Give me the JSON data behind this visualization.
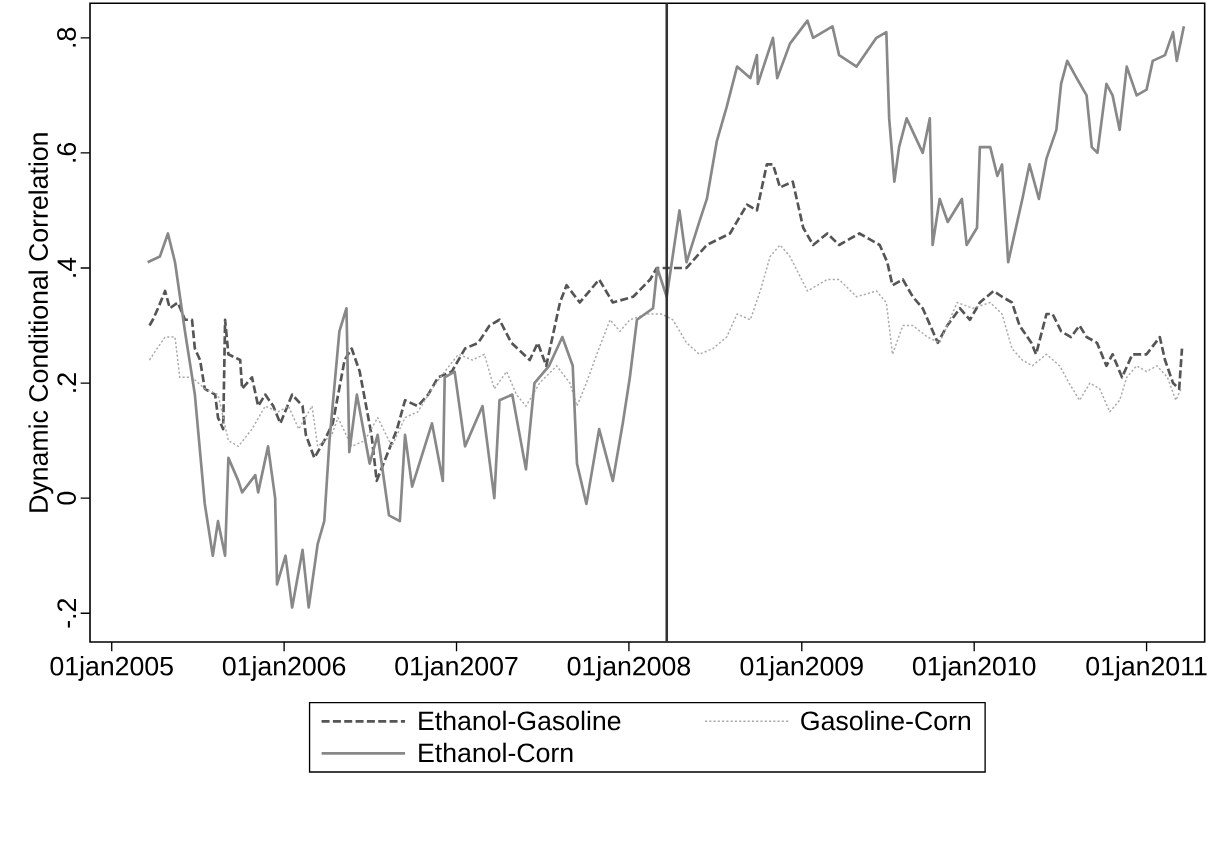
{
  "chart_data": {
    "type": "line",
    "ylabel": "Dynamic Conditional Correlation",
    "xlim": [
      "2004-11-16",
      "2011-05-04"
    ],
    "ylim": [
      -0.25,
      0.86
    ],
    "xticks": [
      {
        "value": "2005-01-01",
        "label": "01jan2005"
      },
      {
        "value": "2006-01-01",
        "label": "01jan2006"
      },
      {
        "value": "2007-01-01",
        "label": "01jan2007"
      },
      {
        "value": "2008-01-01",
        "label": "01jan2008"
      },
      {
        "value": "2009-01-01",
        "label": "01jan2009"
      },
      {
        "value": "2010-01-01",
        "label": "01jan2010"
      },
      {
        "value": "2011-01-01",
        "label": "01jan2011"
      }
    ],
    "yticks": [
      {
        "value": -0.2,
        "label": "-.2"
      },
      0,
      {
        "value": 0.2,
        "label": ".2"
      },
      {
        "value": 0.4,
        "label": ".4"
      },
      {
        "value": 0.6,
        "label": ".6"
      },
      {
        "value": 0.8,
        "label": ".8"
      }
    ],
    "legend": "bottom",
    "grid": false,
    "marker": "none",
    "ref_lines": [
      {
        "axis": "x",
        "value": "2008-03-21",
        "color": "#333333",
        "line_style": "solid"
      }
    ],
    "series": [
      {
        "name": "Ethanol-Gasoline",
        "color": "#555555",
        "line_style": "dashed",
        "x": [
          "2005-03-22",
          "2005-03-29",
          "2005-04-09",
          "2005-04-24",
          "2005-05-04",
          "2005-05-21",
          "2005-06-05",
          "2005-06-20",
          "2005-06-26",
          "2005-07-07",
          "2005-07-17",
          "2005-08-08",
          "2005-08-14",
          "2005-08-25",
          "2005-08-29",
          "2005-09-05",
          "2005-09-30",
          "2005-10-04",
          "2005-10-25",
          "2005-11-07",
          "2005-11-22",
          "2005-12-09",
          "2005-12-24",
          "2006-01-18",
          "2006-02-09",
          "2006-02-16",
          "2006-03-06",
          "2006-03-27",
          "2006-04-14",
          "2006-05-09",
          "2006-05-24",
          "2006-06-10",
          "2006-07-05",
          "2006-07-16",
          "2006-08-09",
          "2006-08-28",
          "2006-09-14",
          "2006-10-11",
          "2006-11-02",
          "2006-11-23",
          "2006-12-22",
          "2007-01-19",
          "2007-02-16",
          "2007-03-12",
          "2007-04-02",
          "2007-04-27",
          "2007-06-05",
          "2007-06-22",
          "2007-07-10",
          "2007-08-08",
          "2007-08-22",
          "2007-09-19",
          "2007-10-30",
          "2007-11-28",
          "2008-01-10",
          "2008-02-15",
          "2008-02-29",
          "2008-03-21",
          "2008-05-02",
          "2008-06-14",
          "2008-08-02",
          "2008-09-07",
          "2008-09-28",
          "2008-10-19",
          "2008-11-01",
          "2008-11-16",
          "2008-12-13",
          "2009-01-04",
          "2009-01-25",
          "2009-02-24",
          "2009-03-21",
          "2009-05-03",
          "2009-06-15",
          "2009-07-01",
          "2009-07-12",
          "2009-08-03",
          "2009-08-24",
          "2009-09-14",
          "2009-10-16",
          "2009-11-05",
          "2009-12-02",
          "2009-12-23",
          "2010-01-13",
          "2010-02-11",
          "2010-03-01",
          "2010-03-22",
          "2010-04-07",
          "2010-05-02",
          "2010-05-12",
          "2010-06-03",
          "2010-06-16",
          "2010-07-04",
          "2010-07-25",
          "2010-08-12",
          "2010-08-27",
          "2010-09-18",
          "2010-10-08",
          "2010-10-21",
          "2010-11-10",
          "2010-12-02",
          "2011-01-01",
          "2011-01-29",
          "2011-02-09",
          "2011-02-26",
          "2011-03-11",
          "2011-03-17"
        ],
        "values": [
          0.3,
          0.31,
          0.33,
          0.36,
          0.33,
          0.34,
          0.31,
          0.31,
          0.26,
          0.24,
          0.19,
          0.18,
          0.14,
          0.12,
          0.31,
          0.25,
          0.24,
          0.19,
          0.21,
          0.16,
          0.18,
          0.16,
          0.13,
          0.18,
          0.16,
          0.11,
          0.07,
          0.1,
          0.13,
          0.24,
          0.26,
          0.22,
          0.11,
          0.03,
          0.08,
          0.12,
          0.17,
          0.16,
          0.18,
          0.21,
          0.22,
          0.26,
          0.27,
          0.3,
          0.31,
          0.27,
          0.24,
          0.27,
          0.23,
          0.34,
          0.37,
          0.34,
          0.38,
          0.34,
          0.35,
          0.38,
          0.4,
          0.4,
          0.4,
          0.44,
          0.46,
          0.51,
          0.5,
          0.58,
          0.58,
          0.54,
          0.55,
          0.47,
          0.44,
          0.46,
          0.44,
          0.46,
          0.44,
          0.41,
          0.37,
          0.38,
          0.35,
          0.33,
          0.27,
          0.3,
          0.33,
          0.31,
          0.34,
          0.36,
          0.35,
          0.34,
          0.3,
          0.27,
          0.25,
          0.32,
          0.32,
          0.29,
          0.28,
          0.3,
          0.28,
          0.27,
          0.23,
          0.25,
          0.21,
          0.25,
          0.25,
          0.28,
          0.24,
          0.2,
          0.19,
          0.26
        ]
      },
      {
        "name": "Gasoline-Corn",
        "color": "#aaaaaa",
        "line_style": "dotted",
        "x": [
          "2005-03-22",
          "2005-04-07",
          "2005-04-24",
          "2005-05-15",
          "2005-05-25",
          "2005-06-20",
          "2005-07-17",
          "2005-08-14",
          "2005-09-05",
          "2005-09-26",
          "2005-10-25",
          "2005-11-22",
          "2005-12-19",
          "2006-01-10",
          "2006-02-01",
          "2006-03-01",
          "2006-03-13",
          "2006-04-12",
          "2006-04-25",
          "2006-05-24",
          "2006-06-21",
          "2006-07-18",
          "2006-08-17",
          "2006-09-14",
          "2006-10-11",
          "2006-11-10",
          "2006-12-07",
          "2007-01-05",
          "2007-02-04",
          "2007-03-01",
          "2007-03-22",
          "2007-04-17",
          "2007-05-08",
          "2007-05-28",
          "2007-06-26",
          "2007-08-01",
          "2007-08-29",
          "2007-09-13",
          "2007-10-03",
          "2007-10-25",
          "2007-11-22",
          "2007-12-13",
          "2008-01-03",
          "2008-02-09",
          "2008-03-10",
          "2008-04-03",
          "2008-05-02",
          "2008-05-29",
          "2008-06-27",
          "2008-07-26",
          "2008-08-17",
          "2008-09-14",
          "2008-10-05",
          "2008-10-26",
          "2008-11-16",
          "2008-12-07",
          "2009-01-13",
          "2009-02-24",
          "2009-03-21",
          "2009-04-27",
          "2009-06-08",
          "2009-06-29",
          "2009-07-12",
          "2009-08-03",
          "2009-08-24",
          "2009-09-24",
          "2009-10-20",
          "2009-11-26",
          "2009-12-29",
          "2010-02-04",
          "2010-03-01",
          "2010-03-22",
          "2010-04-13",
          "2010-05-04",
          "2010-06-03",
          "2010-07-01",
          "2010-07-21",
          "2010-08-12",
          "2010-09-03",
          "2010-09-24",
          "2010-10-15",
          "2010-11-05",
          "2010-11-20",
          "2010-12-11",
          "2011-01-01",
          "2011-01-23",
          "2011-02-14",
          "2011-03-04",
          "2011-03-15"
        ],
        "values": [
          0.24,
          0.26,
          0.28,
          0.28,
          0.21,
          0.21,
          0.19,
          0.18,
          0.1,
          0.09,
          0.12,
          0.16,
          0.15,
          0.16,
          0.12,
          0.16,
          0.09,
          0.11,
          0.14,
          0.09,
          0.1,
          0.14,
          0.09,
          0.14,
          0.15,
          0.19,
          0.22,
          0.25,
          0.24,
          0.25,
          0.19,
          0.22,
          0.18,
          0.16,
          0.2,
          0.23,
          0.2,
          0.16,
          0.2,
          0.25,
          0.31,
          0.29,
          0.31,
          0.32,
          0.32,
          0.31,
          0.27,
          0.25,
          0.26,
          0.28,
          0.32,
          0.31,
          0.36,
          0.42,
          0.44,
          0.42,
          0.36,
          0.38,
          0.38,
          0.35,
          0.36,
          0.34,
          0.25,
          0.3,
          0.3,
          0.28,
          0.27,
          0.34,
          0.33,
          0.34,
          0.32,
          0.26,
          0.24,
          0.23,
          0.25,
          0.23,
          0.2,
          0.17,
          0.2,
          0.19,
          0.15,
          0.17,
          0.21,
          0.23,
          0.22,
          0.23,
          0.21,
          0.17,
          0.19
        ]
      },
      {
        "name": "Ethanol-Corn",
        "color": "#888888",
        "line_style": "solid",
        "x": [
          "2005-03-18",
          "2005-04-13",
          "2005-04-30",
          "2005-05-15",
          "2005-06-05",
          "2005-06-26",
          "2005-07-17",
          "2005-08-03",
          "2005-08-14",
          "2005-08-29",
          "2005-09-05",
          "2005-09-26",
          "2005-10-04",
          "2005-11-01",
          "2005-11-07",
          "2005-11-28",
          "2005-12-13",
          "2005-12-17",
          "2006-01-04",
          "2006-01-18",
          "2006-02-09",
          "2006-02-22",
          "2006-03-13",
          "2006-03-27",
          "2006-04-07",
          "2006-04-28",
          "2006-05-13",
          "2006-05-19",
          "2006-06-04",
          "2006-07-01",
          "2006-07-18",
          "2006-08-11",
          "2006-09-03",
          "2006-09-14",
          "2006-09-29",
          "2006-11-10",
          "2006-12-03",
          "2006-12-07",
          "2006-12-28",
          "2007-01-19",
          "2007-02-25",
          "2007-03-22",
          "2007-04-02",
          "2007-04-29",
          "2007-05-28",
          "2007-06-15",
          "2007-07-16",
          "2007-08-13",
          "2007-09-04",
          "2007-09-13",
          "2007-10-03",
          "2007-10-30",
          "2007-11-28",
          "2007-12-19",
          "2008-01-03",
          "2008-01-18",
          "2008-02-21",
          "2008-03-01",
          "2008-03-21",
          "2008-04-17",
          "2008-05-02",
          "2008-05-29",
          "2008-06-14",
          "2008-07-05",
          "2008-07-26",
          "2008-08-17",
          "2008-09-14",
          "2008-09-28",
          "2008-09-30",
          "2008-11-01",
          "2008-11-10",
          "2008-12-07",
          "2009-01-13",
          "2009-01-25",
          "2009-03-07",
          "2009-03-21",
          "2009-04-27",
          "2009-06-08",
          "2009-06-29",
          "2009-07-05",
          "2009-07-16",
          "2009-07-26",
          "2009-08-11",
          "2009-09-14",
          "2009-09-29",
          "2009-10-05",
          "2009-10-20",
          "2009-11-06",
          "2009-12-06",
          "2009-12-16",
          "2010-01-07",
          "2010-01-13",
          "2010-02-04",
          "2010-02-19",
          "2010-03-01",
          "2010-03-14",
          "2010-04-13",
          "2010-04-28",
          "2010-05-18",
          "2010-06-03",
          "2010-06-24",
          "2010-07-04",
          "2010-07-17",
          "2010-08-06",
          "2010-08-27",
          "2010-09-07",
          "2010-09-19",
          "2010-10-08",
          "2010-10-21",
          "2010-11-05",
          "2010-11-20",
          "2010-12-11",
          "2011-01-01",
          "2011-01-14",
          "2011-02-09",
          "2011-02-26",
          "2011-03-06",
          "2011-03-21"
        ],
        "values": [
          0.41,
          0.42,
          0.46,
          0.41,
          0.29,
          0.18,
          -0.01,
          -0.1,
          -0.04,
          -0.1,
          0.07,
          0.03,
          0.01,
          0.04,
          0.01,
          0.09,
          0.0,
          -0.15,
          -0.1,
          -0.19,
          -0.09,
          -0.19,
          -0.08,
          -0.04,
          0.1,
          0.29,
          0.33,
          0.08,
          0.18,
          0.06,
          0.11,
          -0.03,
          -0.04,
          0.11,
          0.02,
          0.13,
          0.03,
          0.21,
          0.22,
          0.09,
          0.16,
          0.0,
          0.17,
          0.18,
          0.05,
          0.2,
          0.23,
          0.28,
          0.23,
          0.06,
          -0.01,
          0.12,
          0.03,
          0.13,
          0.21,
          0.31,
          0.33,
          0.4,
          0.35,
          0.5,
          0.41,
          0.48,
          0.52,
          0.62,
          0.68,
          0.75,
          0.73,
          0.77,
          0.72,
          0.8,
          0.73,
          0.79,
          0.83,
          0.8,
          0.82,
          0.77,
          0.75,
          0.8,
          0.81,
          0.66,
          0.55,
          0.61,
          0.66,
          0.6,
          0.66,
          0.44,
          0.52,
          0.48,
          0.52,
          0.44,
          0.47,
          0.61,
          0.61,
          0.56,
          0.58,
          0.41,
          0.52,
          0.58,
          0.52,
          0.59,
          0.64,
          0.72,
          0.76,
          0.73,
          0.7,
          0.61,
          0.6,
          0.72,
          0.7,
          0.64,
          0.75,
          0.7,
          0.71,
          0.76,
          0.77,
          0.81,
          0.76,
          0.82
        ]
      }
    ]
  }
}
